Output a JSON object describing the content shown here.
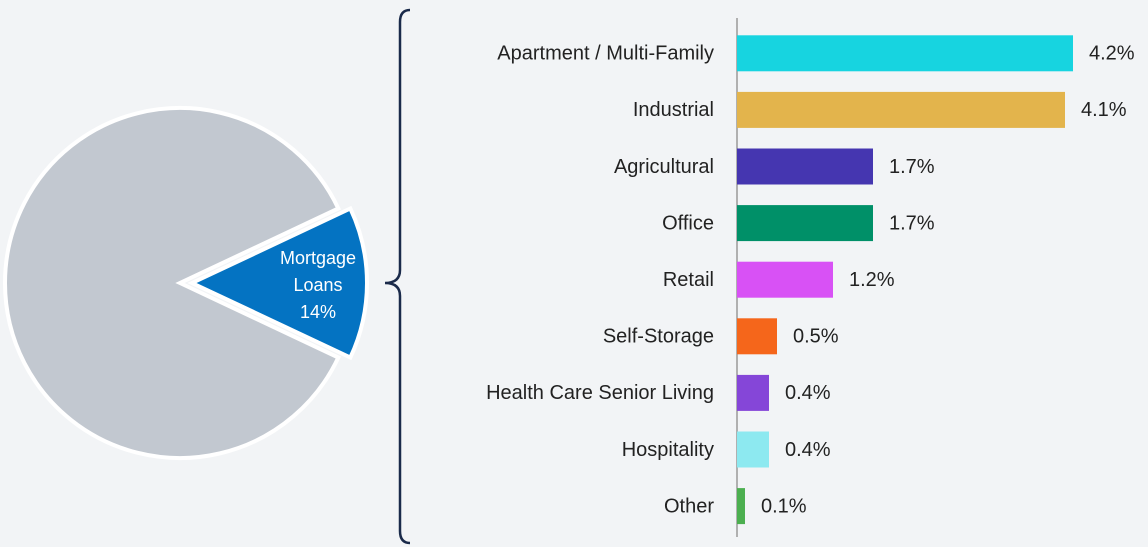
{
  "chart_data": [
    {
      "type": "pie",
      "categories": [
        "Mortgage Loans",
        null
      ],
      "values": [
        14,
        86
      ],
      "value_labels": [
        "14%",
        null
      ],
      "colors": [
        "#0473c2",
        "#c2c8d0"
      ]
    },
    {
      "type": "hbar",
      "categories": [
        "Apartment / Multi-Family",
        "Industrial",
        "Agricultural",
        "Office",
        "Retail",
        "Self-Storage",
        "Health Care Senior Living",
        "Hospitality",
        "Other"
      ],
      "values": [
        4.2,
        4.1,
        1.7,
        1.7,
        1.2,
        0.5,
        0.4,
        0.4,
        0.1
      ],
      "value_labels": [
        "4.2%",
        "4.1%",
        "1.7%",
        "1.7%",
        "1.2%",
        "0.5%",
        "0.4%",
        "0.4%",
        "0.1%"
      ],
      "colors": [
        "#17d4e0",
        "#e3b44c",
        "#4536b0",
        "#009068",
        "#d851f5",
        "#f5661b",
        "#8546d8",
        "#8de9f0",
        "#4caf50"
      ]
    }
  ]
}
